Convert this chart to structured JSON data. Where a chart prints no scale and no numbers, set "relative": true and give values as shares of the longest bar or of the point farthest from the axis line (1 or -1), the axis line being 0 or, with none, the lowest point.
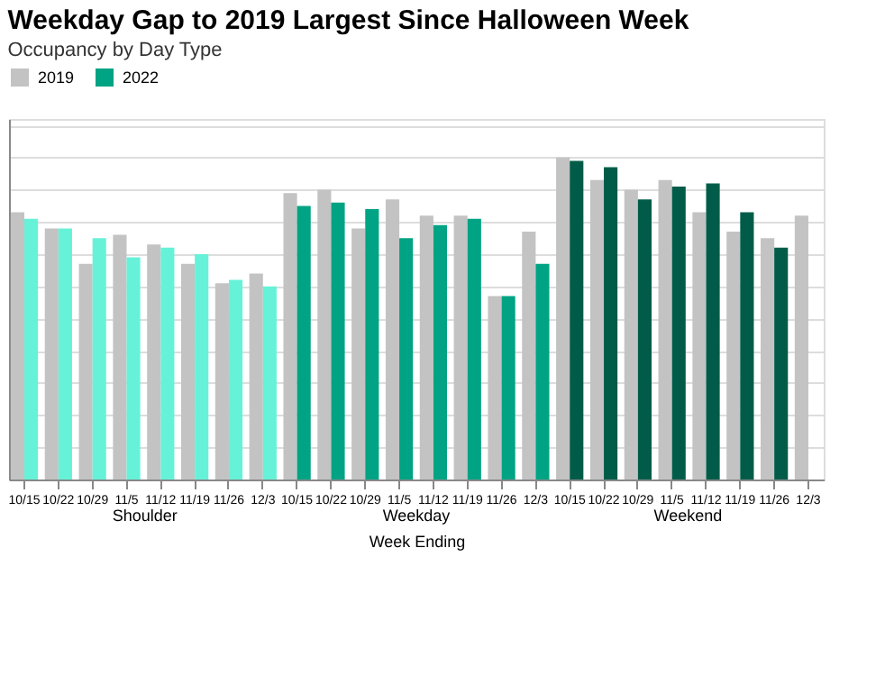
{
  "chart_data": {
    "type": "bar",
    "title": "Weekday Gap to 2019 Largest Since Halloween Week",
    "subtitle": "Occupancy by Day Type",
    "xlabel": "Week Ending",
    "annotations": [
      "Shoulder",
      "Weekday",
      "Weekend"
    ],
    "relative": true,
    "grid": "y",
    "legend": "top",
    "categories": [
      "10/15",
      "10/22",
      "10/29",
      "11/5",
      "11/12",
      "11/19",
      "11/26",
      "12/3",
      "10/15",
      "10/22",
      "10/29",
      "11/5",
      "11/12",
      "11/19",
      "11/26",
      "12/3",
      "10/15",
      "10/22",
      "10/29",
      "11/5",
      "11/12",
      "11/19",
      "11/26",
      "12/3"
    ],
    "series": [
      {
        "name": "2019",
        "color": "#c3c3c3",
        "values": [
          0.83,
          0.78,
          0.67,
          0.76,
          0.73,
          0.67,
          0.61,
          0.64,
          0.89,
          0.9,
          0.78,
          0.87,
          0.82,
          0.82,
          0.57,
          0.77,
          1,
          0.93,
          0.9,
          0.93,
          0.83,
          0.77,
          0.75,
          0.82
        ]
      },
      {
        "name": "2022",
        "color": "#00a383",
        "colors": [
          "#66f2d8",
          "#66f2d8",
          "#66f2d8",
          "#66f2d8",
          "#66f2d8",
          "#66f2d8",
          "#66f2d8",
          "#66f2d8",
          "#00a383",
          "#00a383",
          "#00a383",
          "#00a383",
          "#00a383",
          "#00a383",
          "#00a383",
          "#00a383",
          "#005c48",
          "#005c48",
          "#005c48",
          "#005c48",
          "#005c48",
          "#005c48",
          "#005c48",
          "#005c48"
        ],
        "values": [
          0.81,
          0.78,
          0.75,
          0.69,
          0.72,
          0.7,
          0.62,
          0.6,
          0.85,
          0.86,
          0.84,
          0.75,
          0.79,
          0.81,
          0.57,
          0.67,
          0.99,
          0.97,
          0.87,
          0.91,
          0.92,
          0.83,
          0.72,
          null
        ]
      }
    ]
  }
}
